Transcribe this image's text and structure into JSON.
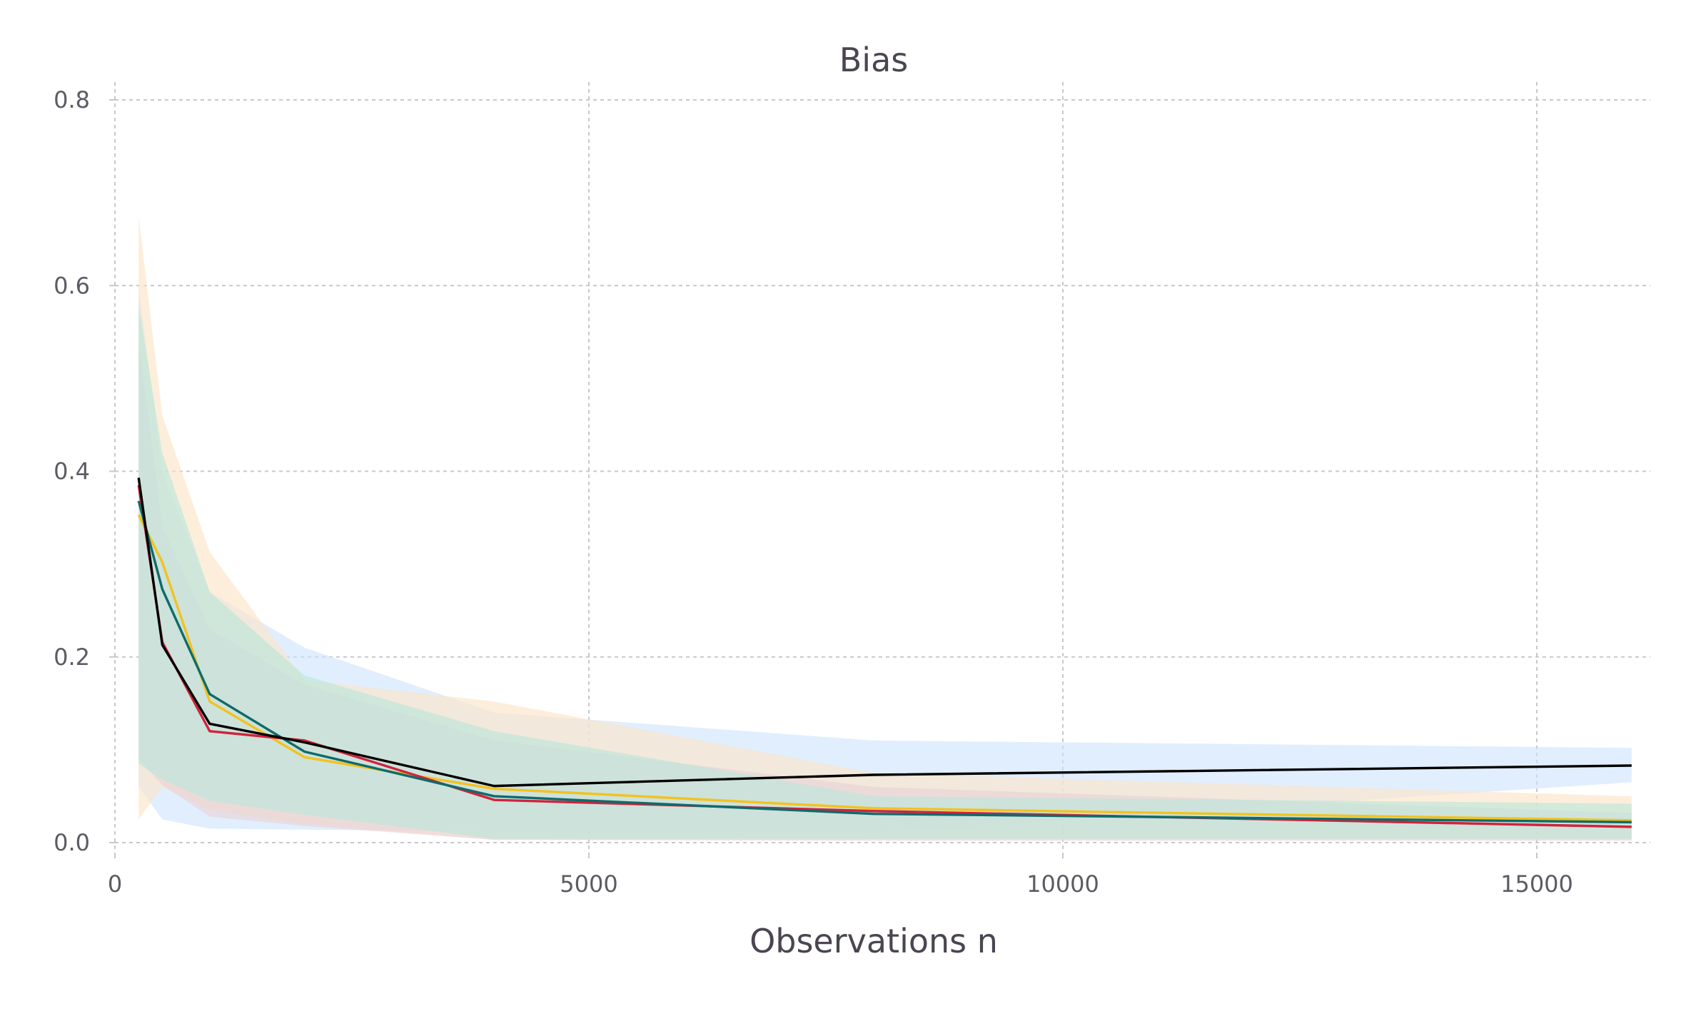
{
  "chart_data": {
    "type": "line",
    "title": "Bias",
    "xlabel": "Observations n",
    "ylabel": "",
    "xlim": [
      0,
      16200
    ],
    "ylim": [
      -0.01,
      0.82
    ],
    "xticks": [
      0,
      5000,
      10000,
      15000
    ],
    "xtick_labels": [
      "0",
      "5000",
      "10000",
      "15000"
    ],
    "yticks": [
      0.0,
      0.2,
      0.4,
      0.6,
      0.8
    ],
    "ytick_labels": [
      "0.0",
      "0.2",
      "0.4",
      "0.6",
      "0.8"
    ],
    "grid": true,
    "legend": "none",
    "x": [
      250,
      500,
      1000,
      2000,
      4000,
      8000,
      16000
    ],
    "series": [
      {
        "color": "#000000",
        "band_color": "#cfe4fb",
        "values": [
          0.393,
          0.213,
          0.128,
          0.108,
          0.061,
          0.073,
          0.083
        ],
        "lower": [
          0.06,
          0.025,
          0.015,
          0.014,
          0.012,
          0.011,
          0.065
        ],
        "upper": [
          0.6,
          0.4,
          0.27,
          0.21,
          0.14,
          0.11,
          0.102
        ]
      },
      {
        "color": "#f2c21f",
        "band_color": "#fbe3c6",
        "values": [
          0.353,
          0.302,
          0.152,
          0.092,
          0.058,
          0.037,
          0.024
        ],
        "lower": [
          0.025,
          0.06,
          0.035,
          0.02,
          0.003,
          0.003,
          0.003
        ],
        "upper": [
          0.675,
          0.46,
          0.313,
          0.175,
          0.152,
          0.075,
          0.05
        ]
      },
      {
        "color": "#d1223d",
        "band_color": "#e9d2d8",
        "values": [
          0.385,
          0.216,
          0.12,
          0.11,
          0.046,
          0.034,
          0.017
        ],
        "lower": [
          0.09,
          0.062,
          0.028,
          0.018,
          0.003,
          0.002,
          0.002
        ],
        "upper": [
          0.54,
          0.34,
          0.23,
          0.17,
          0.11,
          0.06,
          0.032
        ]
      },
      {
        "color": "#0e6b6b",
        "band_color": "#b9e6da",
        "values": [
          0.368,
          0.273,
          0.16,
          0.098,
          0.05,
          0.031,
          0.022
        ],
        "lower": [
          0.085,
          0.068,
          0.045,
          0.03,
          0.004,
          0.004,
          0.004
        ],
        "upper": [
          0.58,
          0.42,
          0.27,
          0.18,
          0.12,
          0.05,
          0.042
        ]
      }
    ]
  }
}
